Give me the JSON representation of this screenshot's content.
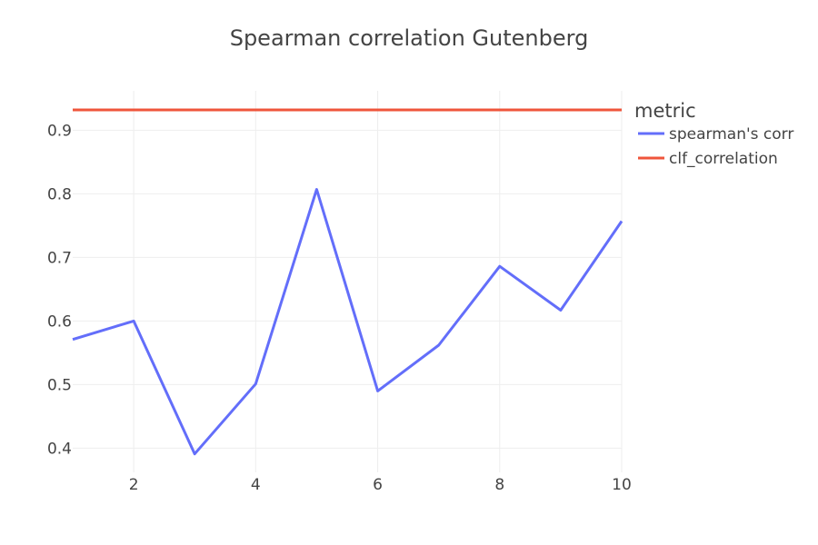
{
  "chart_data": {
    "type": "line",
    "title": "Spearman correlation Gutenberg",
    "xlabel": "",
    "ylabel": "",
    "x_range": [
      1,
      10
    ],
    "y_range": [
      0.362,
      0.962
    ],
    "x_ticks": [
      2,
      4,
      6,
      8,
      10
    ],
    "y_ticks": [
      0.4,
      0.5,
      0.6,
      0.7,
      0.8,
      0.9
    ],
    "x_tick_labels": [
      "2",
      "4",
      "6",
      "8",
      "10"
    ],
    "y_tick_labels": [
      "0.4",
      "0.5",
      "0.6",
      "0.7",
      "0.8",
      "0.9"
    ],
    "grid": true,
    "legend": {
      "title": "metric",
      "placement": "right"
    },
    "series": [
      {
        "name": "spearman's corr",
        "color": "#636efa",
        "x": [
          1,
          2,
          3,
          4,
          5,
          6,
          7,
          8,
          9,
          10
        ],
        "y": [
          0.571,
          0.6,
          0.391,
          0.501,
          0.807,
          0.49,
          0.562,
          0.686,
          0.617,
          0.757
        ]
      },
      {
        "name": "clf_correlation",
        "color": "#ef553b",
        "x": [
          1,
          10
        ],
        "y": [
          0.932,
          0.932
        ]
      }
    ]
  }
}
